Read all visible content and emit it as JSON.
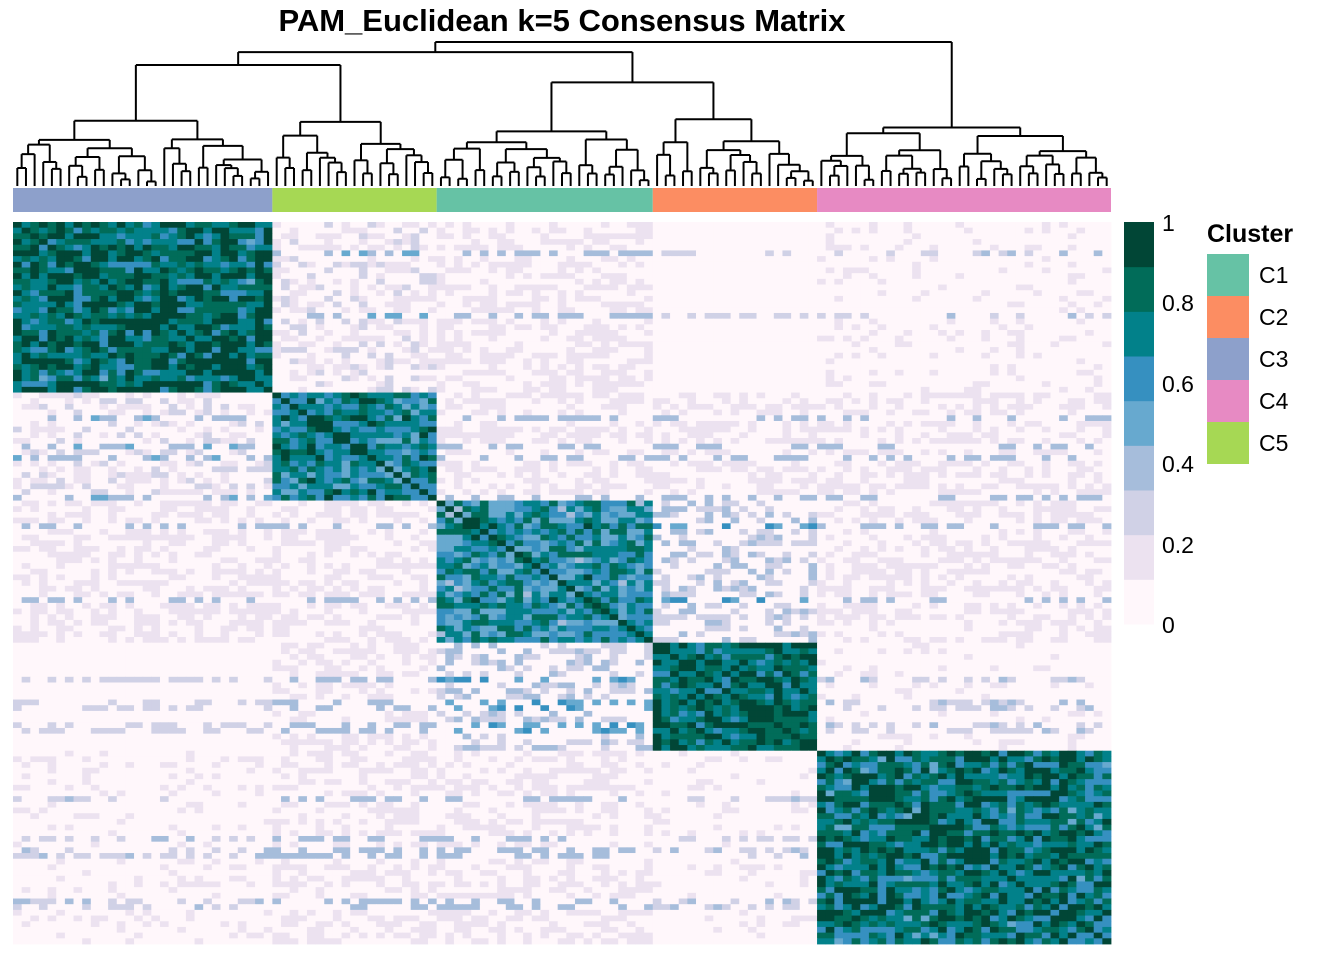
{
  "chart_data": {
    "type": "heatmap",
    "title": "PAM_Euclidean k=5 Consensus Matrix",
    "value_range": [
      0,
      1
    ],
    "color_scale": {
      "ticks": [
        "1",
        "0.8",
        "0.6",
        "0.4",
        "0.2",
        "0"
      ],
      "colors": [
        "#FFF7FB",
        "#ECE2F0",
        "#D0D1E6",
        "#A6BDDB",
        "#67A9CF",
        "#3690C0",
        "#02818A",
        "#016C59",
        "#014636"
      ]
    },
    "column_order_clusters": [
      "C3",
      "C5",
      "C1",
      "C2",
      "C4"
    ],
    "cluster_sizes": [
      30,
      19,
      25,
      19,
      34
    ],
    "dendrogram_shown": true,
    "legend": {
      "title": "Cluster",
      "position": "right",
      "entries": [
        {
          "name": "C1",
          "color": "#66C2A5"
        },
        {
          "name": "C2",
          "color": "#FC8D62"
        },
        {
          "name": "C3",
          "color": "#8DA0CB"
        },
        {
          "name": "C4",
          "color": "#E78AC3"
        },
        {
          "name": "C5",
          "color": "#A6D854"
        }
      ]
    },
    "block_consensus_approx": [
      [
        0.85,
        0.15,
        0.1,
        0.02,
        0.05
      ],
      [
        0.15,
        0.75,
        0.12,
        0.1,
        0.08
      ],
      [
        0.1,
        0.12,
        0.7,
        0.25,
        0.1
      ],
      [
        0.02,
        0.1,
        0.25,
        0.88,
        0.05
      ],
      [
        0.05,
        0.08,
        0.1,
        0.05,
        0.8
      ]
    ]
  }
}
